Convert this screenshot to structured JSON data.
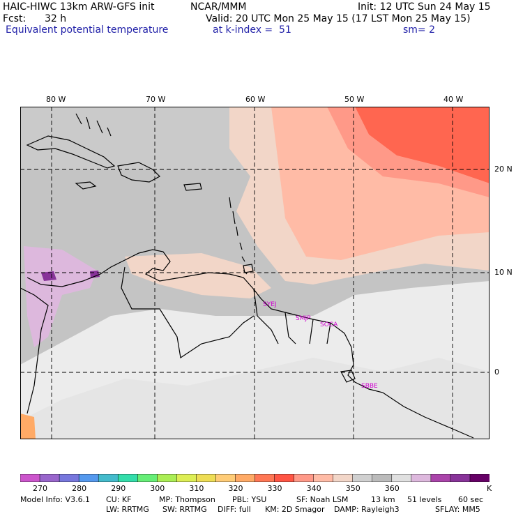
{
  "header": {
    "model_title": "HAIC-HIWC 13km ARW-GFS init",
    "org": "NCAR/MMM",
    "init": "Init: 12 UTC Sun 24 May 15",
    "fcst_label": "Fcst:",
    "fcst_value": "32 h",
    "valid": "Valid: 20 UTC Mon 25 May 15 (17 LST Mon 25 May 15)",
    "field": "Equivalent potential temperature",
    "level": "at k-index =  51",
    "smooth": "sm= 2"
  },
  "map": {
    "lon_labels": [
      "80 W",
      "70 W",
      "60 W",
      "50 W",
      "40 W"
    ],
    "lat_labels": [
      "20 N",
      "10 N",
      "0"
    ],
    "stations": [
      "SYEJ",
      "SMJP",
      "SOCA",
      "SBBE"
    ]
  },
  "colorbar": {
    "colors": [
      "#cc55cc",
      "#9966cc",
      "#7777dd",
      "#5599ee",
      "#44bbcc",
      "#33ddaa",
      "#66ee77",
      "#aaee55",
      "#ddee55",
      "#eedd55",
      "#ffcc77",
      "#ffaa66",
      "#ff7755",
      "#ff5544",
      "#ff9988",
      "#ffbba6",
      "#f2d6c8",
      "#d0d0d0",
      "#bbbbbb",
      "#e0e0e0",
      "#ddb8dd",
      "#aa44aa",
      "#883399",
      "#660066"
    ],
    "tick_labels": [
      "270",
      "280",
      "290",
      "300",
      "310",
      "320",
      "330",
      "340",
      "350",
      "360"
    ],
    "units": "K"
  },
  "footer": {
    "line1": [
      "Model Info: V3.6.1",
      "CU: KF",
      "MP: Thompson",
      "PBL: YSU",
      "SF: Noah LSM",
      "13 km",
      "51 levels",
      "60 sec"
    ],
    "line2": [
      "LW: RRTMG",
      "SW: RRTMG",
      "DIFF: full",
      "KM: 2D Smagor",
      "DAMP: Rayleigh3",
      "SFLAY: MM5"
    ]
  }
}
